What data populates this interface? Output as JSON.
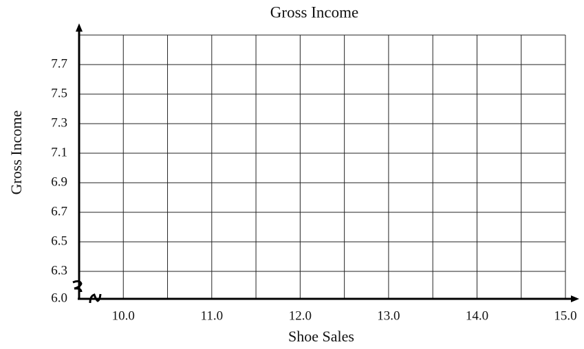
{
  "chart_data": {
    "type": "scatter",
    "title": "Gross Income",
    "x_label": "Shoe Sales",
    "y_label": "Gross Income",
    "x": [],
    "values": [],
    "xlim": [
      9.5,
      15.0
    ],
    "ylim": [
      6.0,
      7.9
    ],
    "xticks": [
      {
        "value": 10.0,
        "label": "10.0"
      },
      {
        "value": 11.0,
        "label": "11.0"
      },
      {
        "value": 12.0,
        "label": "12.0"
      },
      {
        "value": 13.0,
        "label": "13.0"
      },
      {
        "value": 14.0,
        "label": "14.0"
      },
      {
        "value": 15.0,
        "label": "15.0"
      }
    ],
    "yticks": [
      {
        "value": 6.0,
        "label": "6.0"
      },
      {
        "value": 6.3,
        "label": "6.3"
      },
      {
        "value": 6.5,
        "label": "6.5"
      },
      {
        "value": 6.7,
        "label": "6.7"
      },
      {
        "value": 6.9,
        "label": "6.9"
      },
      {
        "value": 7.1,
        "label": "7.1"
      },
      {
        "value": 7.3,
        "label": "7.3"
      },
      {
        "value": 7.5,
        "label": "7.5"
      },
      {
        "value": 7.7,
        "label": "7.7"
      }
    ],
    "x_gridlines": [
      10.0,
      10.5,
      11.0,
      11.5,
      12.0,
      12.5,
      13.0,
      13.5,
      14.0,
      14.5,
      15.0
    ],
    "y_gridlines": [
      6.3,
      6.5,
      6.7,
      6.9,
      7.1,
      7.3,
      7.5,
      7.7,
      7.9
    ],
    "grid": true,
    "axis_break": true
  }
}
